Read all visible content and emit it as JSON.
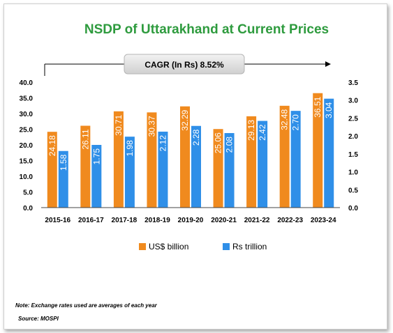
{
  "chart_data": {
    "type": "bar",
    "title": "NSDP of Uttarakhand at Current Prices",
    "annotation": "CAGR (In Rs) 8.52%",
    "categories": [
      "2015-16",
      "2016-17",
      "2017-18",
      "2018-19",
      "2019-20",
      "2020-21",
      "2021-22",
      "2022-23",
      "2023-24"
    ],
    "series": [
      {
        "name": "US$ billion",
        "axis": "left",
        "color": "#f08a1e",
        "values": [
          24.18,
          26.11,
          30.71,
          30.37,
          32.29,
          25.06,
          29.13,
          32.48,
          36.51
        ],
        "labels": [
          "24.18",
          "26.11",
          "30.71",
          "30.37",
          "32.29",
          "25.06",
          "29.13",
          "32.48",
          "36.51"
        ]
      },
      {
        "name": "Rs trillion",
        "axis": "right",
        "color": "#2f8fe8",
        "values": [
          1.58,
          1.75,
          1.98,
          2.12,
          2.28,
          2.08,
          2.42,
          2.7,
          3.04
        ],
        "labels": [
          "1.58",
          "1.75",
          "1.98",
          "2.12",
          "2.28",
          "2.08",
          "2.42",
          "2.70",
          "3.04"
        ]
      }
    ],
    "y_left": {
      "ylim": [
        0,
        40
      ],
      "ticks": [
        "0.0",
        "5.0",
        "10.0",
        "15.0",
        "20.0",
        "25.0",
        "30.0",
        "35.0",
        "40.0"
      ]
    },
    "y_right": {
      "ylim": [
        0,
        3.5
      ],
      "ticks": [
        "0.0",
        "0.5",
        "1.0",
        "1.5",
        "2.0",
        "2.5",
        "3.0",
        "3.5"
      ]
    },
    "legend_position": "bottom",
    "grid": false
  },
  "footer": {
    "note": "Note: Exchange rates used are averages of each year",
    "source": "Source: MOSPI"
  }
}
